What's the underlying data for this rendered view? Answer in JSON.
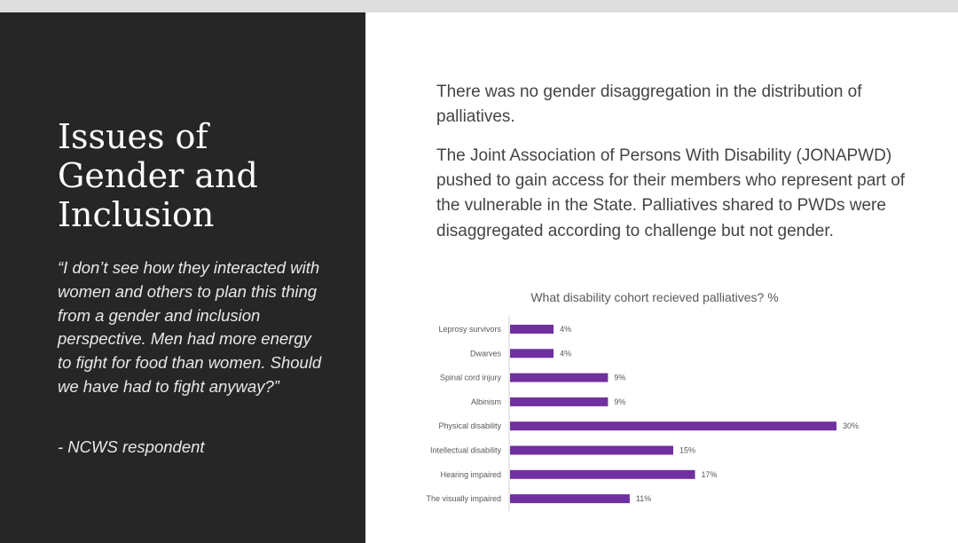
{
  "left_panel": {
    "title_lines": [
      "Issues of",
      "Gender and",
      "Inclusion"
    ],
    "quote": "“I don’t see how they interacted with women and others to plan this thing from a gender and inclusion perspective. Men had more energy to fight for food than women. Should we have had to fight anyway?”",
    "attribution": "- NCWS respondent"
  },
  "right_panel": {
    "paragraph1": "There was no gender disaggregation in the distribution of palliatives.",
    "paragraph2": "The Joint Association of Persons With Disability (JONAPWD) pushed to gain access for their members who represent part of the vulnerable in the State. Palliatives shared to PWDs were disaggregated according to challenge but not gender."
  },
  "colors": {
    "bar": "#7030a0",
    "left_background": "#262626"
  },
  "chart_data": {
    "type": "bar",
    "orientation": "horizontal",
    "title": "What disability cohort recieved palliatives? %",
    "categories": [
      "Leprosy survivors",
      "Dwarves",
      "Spinal cord injury",
      "Albinism",
      "Physical disability",
      "Intellectual disability",
      "Hearing impaired",
      "The visually impaired"
    ],
    "values": [
      4,
      4,
      9,
      9,
      30,
      15,
      17,
      11
    ],
    "value_labels": [
      "4%",
      "4%",
      "9%",
      "9%",
      "30%",
      "15%",
      "17%",
      "11%"
    ],
    "xlabel": "",
    "ylabel": "",
    "xlim": [
      0,
      30
    ],
    "grid": false
  }
}
